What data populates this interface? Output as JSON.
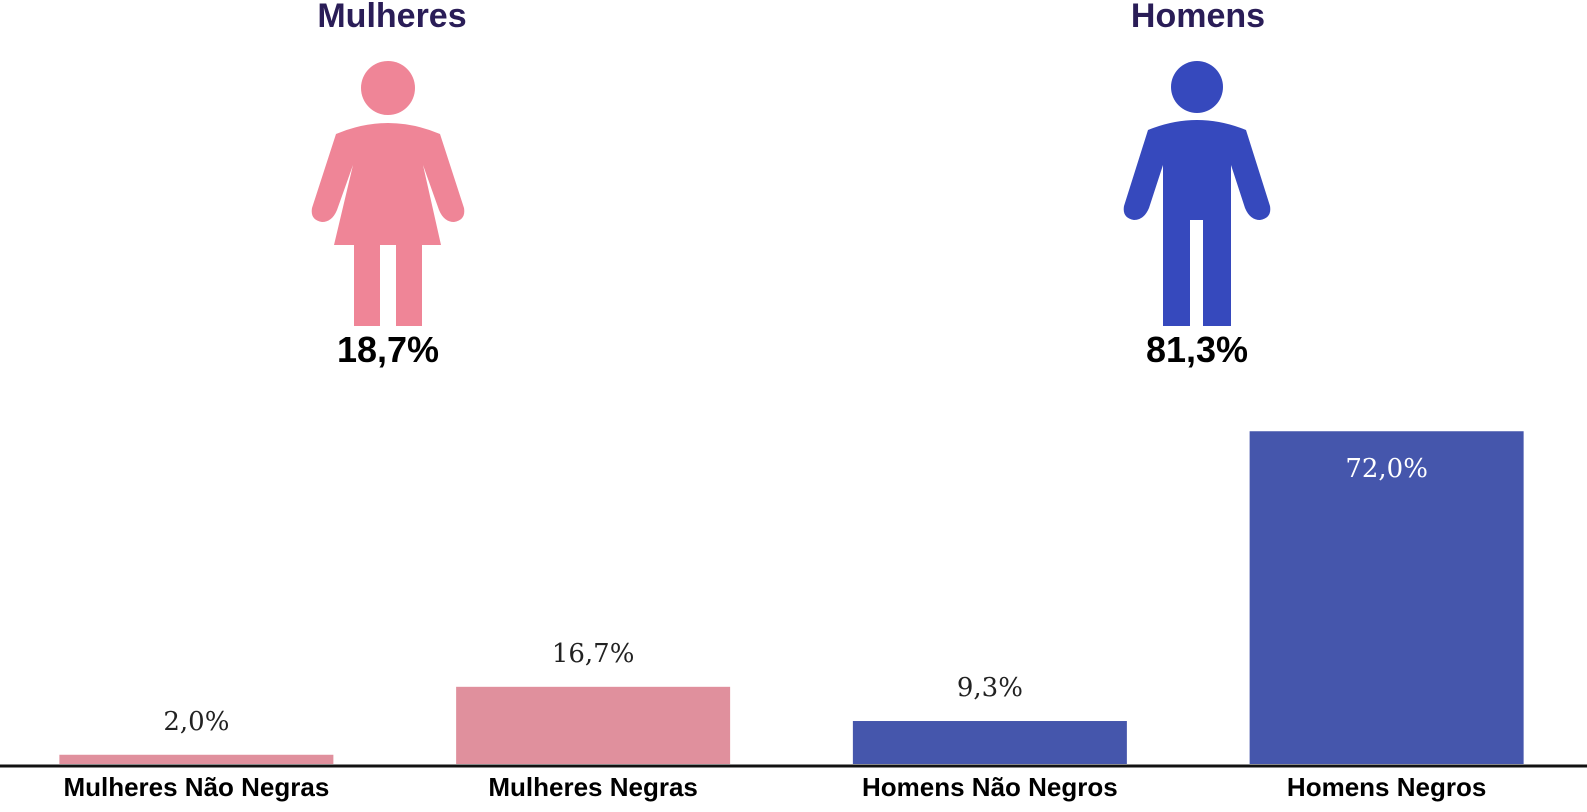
{
  "groups": [
    {
      "title": "Mulheres",
      "percent": "18,7%",
      "icon": "woman-icon",
      "color": "#ef8597"
    },
    {
      "title": "Homens",
      "percent": "81,3%",
      "icon": "man-icon",
      "color": "#3649bd"
    }
  ],
  "chart_data": {
    "type": "bar",
    "categories": [
      "Mulheres Não Negras",
      "Mulheres Negras",
      "Homens Não Negros",
      "Homens Negros"
    ],
    "values": [
      2.0,
      16.7,
      9.3,
      72.0
    ],
    "value_labels": [
      "2,0%",
      "16,7%",
      "9,3%",
      "72,0%"
    ],
    "colors": [
      "#e0909d",
      "#e0909d",
      "#4556ac",
      "#4556ac"
    ],
    "label_colors": [
      "#222222",
      "#222222",
      "#222222",
      "#ffffff"
    ],
    "ylim": [
      0,
      74
    ],
    "grid": false,
    "title": "",
    "xlabel": "",
    "ylabel": ""
  }
}
